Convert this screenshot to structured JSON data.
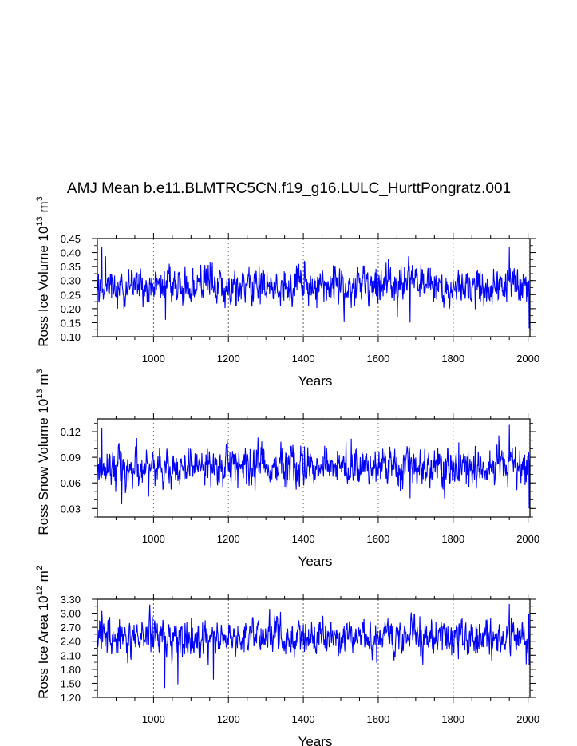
{
  "title": "AMJ Mean b.e11.BLMTRC5CN.f19_g16.LULC_HurttPongratz.001",
  "line_color": "#0000ff",
  "chart_data": [
    {
      "type": "line",
      "xlabel": "Years",
      "ylabel_parts": [
        "Ross Ice Volume 10",
        "13",
        " m",
        "3"
      ],
      "xlim": [
        850,
        2005
      ],
      "ylim": [
        0.1,
        0.45
      ],
      "xticks": [
        1000,
        1200,
        1400,
        1600,
        1800,
        2000
      ],
      "xtick_labels": [
        "1000",
        "1200",
        "1400",
        "1600",
        "1800",
        "2000"
      ],
      "yticks": [
        0.1,
        0.15,
        0.2,
        0.25,
        0.3,
        0.35,
        0.4,
        0.45
      ],
      "ytick_labels": [
        "0.10",
        "0.15",
        "0.20",
        "0.25",
        "0.30",
        "0.35",
        "0.40",
        "0.45"
      ],
      "series": [
        {
          "name": "Ross Ice Volume",
          "mean": 0.28,
          "amplitude": 0.035,
          "min": 0.13,
          "max": 0.42,
          "notable": [
            [
              862,
              0.42
            ],
            [
              1032,
              0.16
            ],
            [
              1685,
              0.15
            ],
            [
              1950,
              0.42
            ],
            [
              2003,
              0.13
            ]
          ]
        }
      ]
    },
    {
      "type": "line",
      "xlabel": "Years",
      "ylabel_parts": [
        "Ross Snow Volume 10",
        "13",
        " m",
        "3"
      ],
      "xlim": [
        850,
        2005
      ],
      "ylim": [
        0.02,
        0.135
      ],
      "xticks": [
        1000,
        1200,
        1400,
        1600,
        1800,
        2000
      ],
      "xtick_labels": [
        "1000",
        "1200",
        "1400",
        "1600",
        "1800",
        "2000"
      ],
      "yticks": [
        0.03,
        0.06,
        0.09,
        0.12
      ],
      "ytick_labels": [
        "0.03",
        "0.06",
        "0.09",
        "0.12"
      ],
      "series": [
        {
          "name": "Ross Snow Volume",
          "mean": 0.078,
          "amplitude": 0.012,
          "min": 0.03,
          "max": 0.128,
          "notable": [
            [
              862,
              0.124
            ],
            [
              915,
              0.035
            ],
            [
              1685,
              0.042
            ],
            [
              1950,
              0.128
            ],
            [
              2003,
              0.03
            ]
          ]
        }
      ]
    },
    {
      "type": "line",
      "xlabel": "Years",
      "ylabel_parts": [
        "Ross Ice Area 10",
        "12",
        " m",
        "2"
      ],
      "xlim": [
        850,
        2005
      ],
      "ylim": [
        1.2,
        3.3
      ],
      "xticks": [
        1000,
        1200,
        1400,
        1600,
        1800,
        2000
      ],
      "xtick_labels": [
        "1000",
        "1200",
        "1400",
        "1600",
        "1800",
        "2000"
      ],
      "yticks": [
        1.2,
        1.5,
        1.8,
        2.1,
        2.4,
        2.7,
        3.0,
        3.3
      ],
      "ytick_labels": [
        "1.20",
        "1.50",
        "1.80",
        "2.10",
        "2.40",
        "2.70",
        "3.00",
        "3.30"
      ],
      "series": [
        {
          "name": "Ross Ice Area",
          "mean": 2.48,
          "amplitude": 0.2,
          "min": 1.4,
          "max": 3.2,
          "notable": [
            [
              862,
              3.05
            ],
            [
              1030,
              1.4
            ],
            [
              1065,
              1.48
            ],
            [
              1160,
              1.58
            ],
            [
              1950,
              3.2
            ],
            [
              2003,
              1.9
            ]
          ]
        }
      ]
    }
  ]
}
